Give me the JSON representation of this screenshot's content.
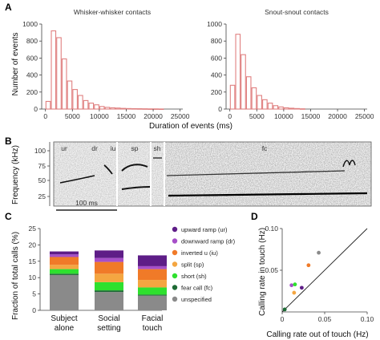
{
  "panels": {
    "a": "A",
    "b": "B",
    "c": "C",
    "d": "D"
  },
  "chart_data": [
    {
      "panel": "A-left",
      "type": "bar",
      "title": "Whisker-whisker contacts",
      "xlabel": "Duration of events (ms)",
      "ylabel": "Number of events",
      "bin_width": 1000,
      "x_ticks": [
        "0",
        "5000",
        "10000",
        "15000",
        "20000",
        "25000"
      ],
      "y_ticks": [
        "0",
        "200",
        "400",
        "600",
        "800",
        "1000"
      ],
      "xlim": [
        -700,
        25500
      ],
      "ylim": [
        0,
        1000
      ],
      "bar_color": "#e08080",
      "bins": [
        0,
        1000,
        2000,
        3000,
        4000,
        5000,
        6000,
        7000,
        8000,
        9000,
        10000,
        11000,
        12000,
        13000,
        14000,
        15000,
        16000,
        17000,
        18000,
        19000,
        20000,
        21000
      ],
      "values": [
        90,
        920,
        840,
        590,
        330,
        230,
        160,
        100,
        70,
        50,
        30,
        20,
        15,
        12,
        8,
        6,
        5,
        4,
        3,
        2,
        2,
        1
      ]
    },
    {
      "panel": "A-right",
      "type": "bar",
      "title": "Snout-snout contacts",
      "xlabel": "",
      "ylabel": "",
      "bin_width": 1000,
      "x_ticks": [
        "0",
        "5000",
        "10000",
        "15000",
        "20000",
        "25000"
      ],
      "y_ticks": [
        "0",
        "200",
        "400",
        "600",
        "800",
        "1000"
      ],
      "xlim": [
        -700,
        25500
      ],
      "ylim": [
        0,
        1000
      ],
      "bar_color": "#e08080",
      "bins": [
        0,
        1000,
        2000,
        3000,
        4000,
        5000,
        6000,
        7000,
        8000,
        9000,
        10000,
        11000,
        12000,
        13000
      ],
      "values": [
        280,
        880,
        640,
        380,
        250,
        160,
        110,
        70,
        40,
        25,
        15,
        10,
        6,
        3
      ]
    },
    {
      "panel": "C",
      "type": "bar",
      "stacked": true,
      "ylabel": "Fraction of total calls (%)",
      "categories": [
        "Subject\nalone",
        "Social\nsetting",
        "Facial\ntouch"
      ],
      "y_ticks": [
        "0",
        "5",
        "10",
        "15",
        "20",
        "25"
      ],
      "ylim": [
        0,
        25
      ],
      "series": [
        {
          "name": "unspecified",
          "color": "#8a8a8a",
          "values": [
            10.8,
            5.6,
            4.5
          ]
        },
        {
          "name": "fear call (fc)",
          "color": "#1e6b35",
          "values": [
            0.4,
            0.5,
            0.3
          ]
        },
        {
          "name": "short (sh)",
          "color": "#2ee02e",
          "values": [
            1.4,
            2.5,
            2.2
          ]
        },
        {
          "name": "split (sp)",
          "color": "#f4a641",
          "values": [
            1.3,
            2.6,
            2.3
          ]
        },
        {
          "name": "inverted u (iu)",
          "color": "#f07a28",
          "values": [
            2.4,
            3.6,
            3.3
          ]
        },
        {
          "name": "downward ramp (dr)",
          "color": "#a64fc8",
          "values": [
            0.8,
            1.2,
            0.9
          ]
        },
        {
          "name": "upward ramp (ur)",
          "color": "#5e1d87",
          "values": [
            0.9,
            2.3,
            3.3
          ]
        }
      ],
      "legend_order": [
        "upward ramp (ur)",
        "downward ramp (dr)",
        "inverted u (iu)",
        "split (sp)",
        "short (sh)",
        "fear call (fc)",
        "unspecified"
      ],
      "legend_position": "right"
    },
    {
      "panel": "D",
      "type": "scatter",
      "xlabel": "Calling rate out of touch (Hz)",
      "ylabel": "Calling rate in touch (Hz)",
      "xlim": [
        0,
        0.1
      ],
      "ylim": [
        0,
        0.1
      ],
      "x_ticks": [
        "0",
        "0.05",
        "0.10"
      ],
      "y_ticks": [
        "0.05",
        "0.10"
      ],
      "identity_line": true,
      "points": [
        {
          "name": "upward ramp (ur)",
          "x": 0.023,
          "y": 0.029,
          "color": "#5e1d87"
        },
        {
          "name": "downward ramp (dr)",
          "x": 0.011,
          "y": 0.032,
          "color": "#a64fc8"
        },
        {
          "name": "inverted u (iu)",
          "x": 0.031,
          "y": 0.056,
          "color": "#f07a28"
        },
        {
          "name": "split (sp)",
          "x": 0.014,
          "y": 0.023,
          "color": "#f4a641"
        },
        {
          "name": "short (sh)",
          "x": 0.015,
          "y": 0.033,
          "color": "#2ee02e"
        },
        {
          "name": "fear call (fc)",
          "x": 0.003,
          "y": 0.003,
          "color": "#1e6b35"
        },
        {
          "name": "unspecified",
          "x": 0.043,
          "y": 0.071,
          "color": "#8a8a8a"
        }
      ]
    }
  ],
  "spectrogram": {
    "ylabel": "Frequency (kHz)",
    "y_ticks": [
      "25",
      "50",
      "75",
      "100"
    ],
    "scale_bar_label": "100 ms",
    "call_labels": [
      {
        "text": "ur",
        "color": "#5e1d87"
      },
      {
        "text": "dr",
        "color": "#a64fc8"
      },
      {
        "text": "iu",
        "color": "#f07a28"
      },
      {
        "text": "sp",
        "color": "#f4a641"
      },
      {
        "text": "sh",
        "color": "#2ee02e"
      },
      {
        "text": "fc",
        "color": "#1e6b35"
      }
    ]
  }
}
